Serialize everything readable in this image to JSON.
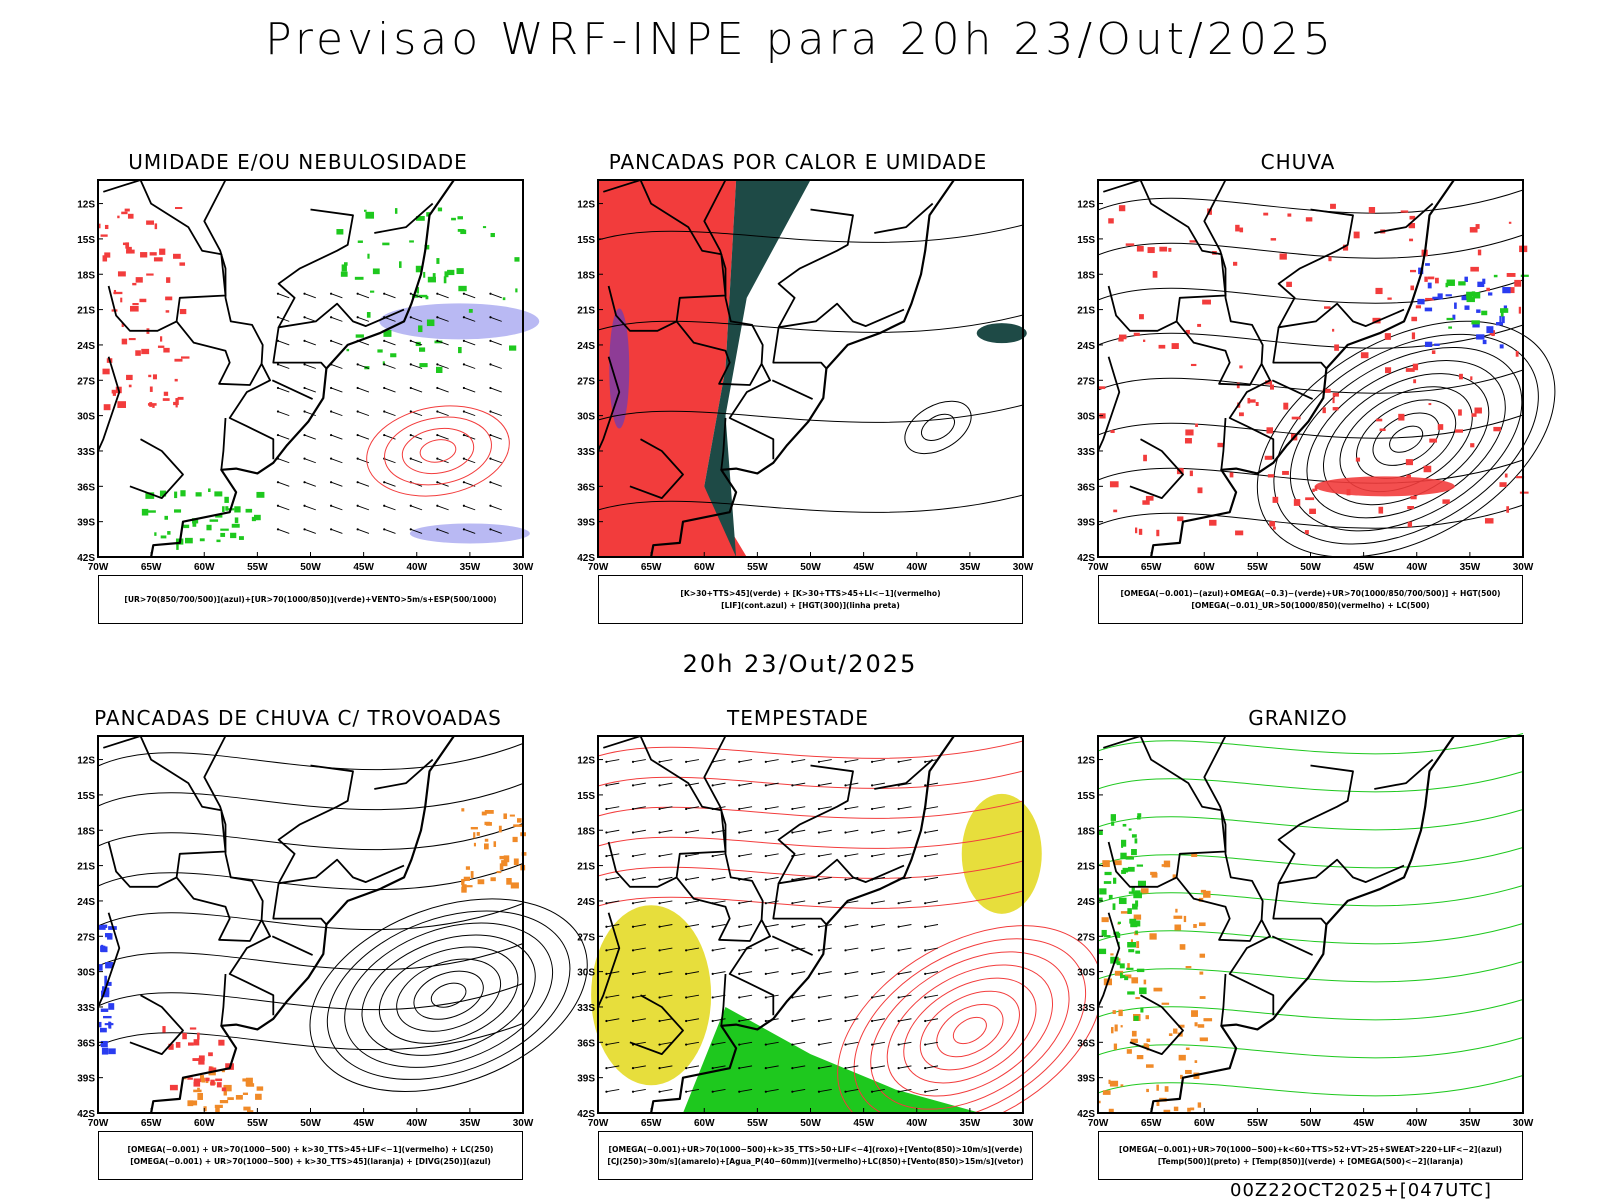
{
  "header": {
    "title": "Previsao WRF-INPE  para 20h 23/Out/2025"
  },
  "middle": {
    "date_label": "20h 23/Out/2025"
  },
  "footer": {
    "run_label": "00Z22OCT2025+[047UTC]"
  },
  "axes": {
    "lat_labels": [
      "12S",
      "15S",
      "18S",
      "21S",
      "24S",
      "27S",
      "30S",
      "33S",
      "36S",
      "39S",
      "42S"
    ],
    "lat_values": [
      -12,
      -15,
      -18,
      -21,
      -24,
      -27,
      -30,
      -33,
      -36,
      -39,
      -42
    ],
    "lon_labels": [
      "70W",
      "65W",
      "60W",
      "55W",
      "50W",
      "45W",
      "40W",
      "35W",
      "30W"
    ],
    "lon_values": [
      -70,
      -65,
      -60,
      -55,
      -50,
      -45,
      -40,
      -35,
      -30
    ]
  },
  "colors": {
    "red": "#f23c3c",
    "green": "#1ec81e",
    "blue": "#2a3cf0",
    "lavender": "#a8a8f0",
    "darkteal": "#1e4a46",
    "orange": "#f08a28",
    "yellow": "#e6dc32",
    "black": "#000000"
  },
  "panels": [
    {
      "title": "UMIDADE E/OU NEBULOSIDADE",
      "legend": [
        "[UR>70(850/700/500)](azul)+[UR>70(1000/850)](verde)+VENTO>5m/s+ESP(500/1000)"
      ]
    },
    {
      "title": "PANCADAS POR CALOR E UMIDADE",
      "legend": [
        "[K>30+TTS>45](verde) + [K>30+TTS>45+LI<−1](vermelho)",
        "[LIF](cont.azul) + [HGT(300)](linha preta)"
      ]
    },
    {
      "title": "CHUVA",
      "legend": [
        "[OMEGA(−0.001)−(azul)+OMEGA(−0.3)−(verde)+UR>70(1000/850/700/500)] + HGT(500)",
        "[OMEGA(−0.01)_UR>50(1000/850)(vermelho) + LC(500)"
      ]
    },
    {
      "title": "PANCADAS DE CHUVA C/ TROVOADAS",
      "legend": [
        "[OMEGA(−0.001) + UR>70(1000−500) + k>30_TTS>45+LIF<−1](vermelho) + LC(250)",
        "[OMEGA(−0.001) + UR>70(1000−500) + k>30_TTS>45](laranja) + [DIVG(250)](azul)"
      ]
    },
    {
      "title": "TEMPESTADE",
      "legend": [
        "[OMEGA(−0.001)+UR>70(1000−500)+k>35_TTS>50+LIF<−4](roxo)+[Vento(850)>10m/s](verde)",
        "[CJ(250)>30m/s](amarelo)+[Agua_P(40−60mm)](vermelho)+LC(850)+[Vento(850)>15m/s](vetor)"
      ]
    },
    {
      "title": "GRANIZO",
      "legend": [
        "[OMEGA(−0.001)+UR>70(1000−500)+k<60+TTS>52+VT>25+SWEAT>220+LIF<−2](azul)",
        "[Temp(500)](preto) + [Temp(850)](verde) + [OMEGA(500)<−2](laranja)"
      ]
    }
  ]
}
